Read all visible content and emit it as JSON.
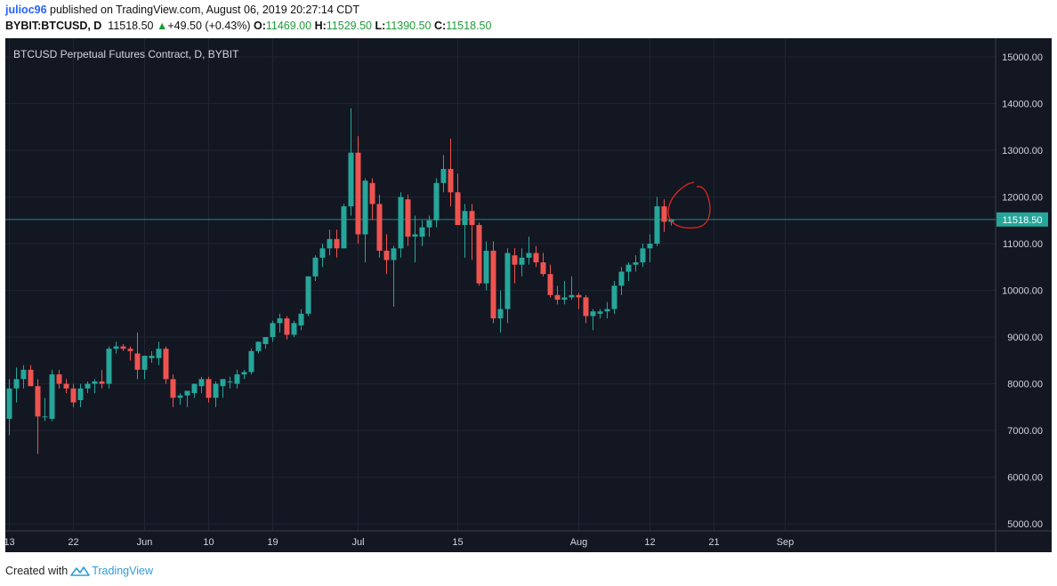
{
  "header": {
    "username": "julioc96",
    "published_text": "published on TradingView.com, August 06, 2019 20:27:14 CDT",
    "symbol": "BYBIT:BTCUSD, D",
    "last": "11518.50",
    "change": "+49.50 (+0.43%)",
    "o_label": "O:",
    "o_value": "11469.00",
    "h_label": "H:",
    "h_value": "11529.50",
    "l_label": "L:",
    "l_value": "11390.50",
    "c_label": "C:",
    "c_value": "11518.50"
  },
  "footer": {
    "created_with": "Created with",
    "brand": "TradingView"
  },
  "colors": {
    "background": "#131722",
    "up": "#26a69a",
    "down": "#ef5350",
    "grid": "#1f2433",
    "price_line": "#26a69a",
    "annotation": "#e0281f"
  },
  "chart_data": {
    "type": "candlestick",
    "title": "BTCUSD Perpetual Futures Contract, D, BYBIT",
    "ylim": [
      4850,
      15400
    ],
    "yticks": [
      "15000.00",
      "14000.00",
      "13000.00",
      "12000.00",
      "11000.00",
      "10000.00",
      "9000.00",
      "8000.00",
      "7000.00",
      "6000.00",
      "5000.00"
    ],
    "ytick_values": [
      15000,
      14000,
      13000,
      12000,
      11000,
      10000,
      9000,
      8000,
      7000,
      6000,
      5000
    ],
    "xticks": [
      "13",
      "22",
      "Jun",
      "10",
      "19",
      "Jul",
      "15",
      "Aug",
      "12",
      "21",
      "Sep"
    ],
    "xtick_index": [
      0,
      9,
      19,
      28,
      37,
      49,
      63,
      80,
      90,
      99,
      109
    ],
    "current_price_label": "11518.50",
    "current_price": 11518.5,
    "candles": [
      {
        "o": 7250,
        "h": 8100,
        "l": 6900,
        "c": 7900
      },
      {
        "o": 7900,
        "h": 8350,
        "l": 7600,
        "c": 8100
      },
      {
        "o": 8100,
        "h": 8400,
        "l": 7900,
        "c": 8300
      },
      {
        "o": 8300,
        "h": 8400,
        "l": 7950,
        "c": 7950
      },
      {
        "o": 7950,
        "h": 8100,
        "l": 6500,
        "c": 7300
      },
      {
        "o": 7300,
        "h": 7700,
        "l": 7200,
        "c": 7300
      },
      {
        "o": 7250,
        "h": 8300,
        "l": 7200,
        "c": 8200
      },
      {
        "o": 8200,
        "h": 8300,
        "l": 7900,
        "c": 8000
      },
      {
        "o": 8000,
        "h": 8100,
        "l": 7800,
        "c": 7900
      },
      {
        "o": 7900,
        "h": 8000,
        "l": 7500,
        "c": 7600
      },
      {
        "o": 7650,
        "h": 8000,
        "l": 7500,
        "c": 7900
      },
      {
        "o": 7900,
        "h": 8050,
        "l": 7800,
        "c": 8000
      },
      {
        "o": 8000,
        "h": 8100,
        "l": 7800,
        "c": 8050
      },
      {
        "o": 8050,
        "h": 8300,
        "l": 7900,
        "c": 8000
      },
      {
        "o": 8000,
        "h": 8800,
        "l": 7900,
        "c": 8750
      },
      {
        "o": 8750,
        "h": 8900,
        "l": 8650,
        "c": 8800
      },
      {
        "o": 8800,
        "h": 8850,
        "l": 8700,
        "c": 8750
      },
      {
        "o": 8750,
        "h": 8800,
        "l": 8500,
        "c": 8700
      },
      {
        "o": 8650,
        "h": 9100,
        "l": 8100,
        "c": 8300
      },
      {
        "o": 8300,
        "h": 8600,
        "l": 8100,
        "c": 8600
      },
      {
        "o": 8550,
        "h": 8700,
        "l": 8450,
        "c": 8600
      },
      {
        "o": 8550,
        "h": 8900,
        "l": 8400,
        "c": 8750
      },
      {
        "o": 8750,
        "h": 8800,
        "l": 8000,
        "c": 8100
      },
      {
        "o": 8100,
        "h": 8200,
        "l": 7500,
        "c": 7700
      },
      {
        "o": 7700,
        "h": 7800,
        "l": 7550,
        "c": 7750
      },
      {
        "o": 7750,
        "h": 7850,
        "l": 7500,
        "c": 7850
      },
      {
        "o": 7800,
        "h": 8000,
        "l": 7700,
        "c": 8000
      },
      {
        "o": 7950,
        "h": 8150,
        "l": 7800,
        "c": 8100
      },
      {
        "o": 8100,
        "h": 8150,
        "l": 7600,
        "c": 7700
      },
      {
        "o": 7700,
        "h": 8050,
        "l": 7500,
        "c": 8000
      },
      {
        "o": 7950,
        "h": 8100,
        "l": 7700,
        "c": 8100
      },
      {
        "o": 8050,
        "h": 8150,
        "l": 7900,
        "c": 8050
      },
      {
        "o": 8000,
        "h": 8300,
        "l": 7900,
        "c": 8200
      },
      {
        "o": 8200,
        "h": 8300,
        "l": 8100,
        "c": 8250
      },
      {
        "o": 8250,
        "h": 8750,
        "l": 8200,
        "c": 8700
      },
      {
        "o": 8700,
        "h": 8900,
        "l": 8650,
        "c": 8900
      },
      {
        "o": 8850,
        "h": 9000,
        "l": 8750,
        "c": 9000
      },
      {
        "o": 9000,
        "h": 9350,
        "l": 8900,
        "c": 9300
      },
      {
        "o": 9300,
        "h": 9500,
        "l": 9100,
        "c": 9400
      },
      {
        "o": 9400,
        "h": 9450,
        "l": 8950,
        "c": 9050
      },
      {
        "o": 9050,
        "h": 9350,
        "l": 9000,
        "c": 9300
      },
      {
        "o": 9250,
        "h": 9600,
        "l": 9150,
        "c": 9500
      },
      {
        "o": 9500,
        "h": 10300,
        "l": 9450,
        "c": 10300
      },
      {
        "o": 10300,
        "h": 10750,
        "l": 10200,
        "c": 10700
      },
      {
        "o": 10700,
        "h": 11000,
        "l": 10500,
        "c": 10900
      },
      {
        "o": 10900,
        "h": 11300,
        "l": 10750,
        "c": 11100
      },
      {
        "o": 11100,
        "h": 11300,
        "l": 10700,
        "c": 10900
      },
      {
        "o": 10900,
        "h": 11850,
        "l": 10900,
        "c": 11800
      },
      {
        "o": 11800,
        "h": 13900,
        "l": 11600,
        "c": 12950
      },
      {
        "o": 12950,
        "h": 13300,
        "l": 11000,
        "c": 11200
      },
      {
        "o": 11200,
        "h": 12400,
        "l": 10600,
        "c": 12350
      },
      {
        "o": 12300,
        "h": 12400,
        "l": 11500,
        "c": 11850
      },
      {
        "o": 11850,
        "h": 12050,
        "l": 10700,
        "c": 10850
      },
      {
        "o": 10850,
        "h": 11200,
        "l": 10350,
        "c": 10650
      },
      {
        "o": 10650,
        "h": 10950,
        "l": 9650,
        "c": 10900
      },
      {
        "o": 10900,
        "h": 12100,
        "l": 10700,
        "c": 12000
      },
      {
        "o": 11950,
        "h": 12050,
        "l": 10950,
        "c": 11150
      },
      {
        "o": 11150,
        "h": 11600,
        "l": 10600,
        "c": 11200
      },
      {
        "o": 11150,
        "h": 11500,
        "l": 10950,
        "c": 11350
      },
      {
        "o": 11350,
        "h": 11600,
        "l": 11150,
        "c": 11500
      },
      {
        "o": 11500,
        "h": 12400,
        "l": 11350,
        "c": 12300
      },
      {
        "o": 12300,
        "h": 12900,
        "l": 12100,
        "c": 12600
      },
      {
        "o": 12600,
        "h": 13250,
        "l": 11800,
        "c": 12100
      },
      {
        "o": 12100,
        "h": 12500,
        "l": 11400,
        "c": 11400
      },
      {
        "o": 11400,
        "h": 11850,
        "l": 10700,
        "c": 11700
      },
      {
        "o": 11700,
        "h": 11850,
        "l": 10650,
        "c": 11400
      },
      {
        "o": 11400,
        "h": 11450,
        "l": 10100,
        "c": 10150
      },
      {
        "o": 10150,
        "h": 11050,
        "l": 10000,
        "c": 10850
      },
      {
        "o": 10850,
        "h": 11050,
        "l": 9300,
        "c": 9400
      },
      {
        "o": 9400,
        "h": 10000,
        "l": 9100,
        "c": 9600
      },
      {
        "o": 9600,
        "h": 10900,
        "l": 9300,
        "c": 10800
      },
      {
        "o": 10750,
        "h": 10900,
        "l": 10150,
        "c": 10550
      },
      {
        "o": 10550,
        "h": 10900,
        "l": 10300,
        "c": 10700
      },
      {
        "o": 10700,
        "h": 11150,
        "l": 10550,
        "c": 10800
      },
      {
        "o": 10800,
        "h": 10950,
        "l": 10500,
        "c": 10600
      },
      {
        "o": 10600,
        "h": 10800,
        "l": 10300,
        "c": 10350
      },
      {
        "o": 10350,
        "h": 10550,
        "l": 9850,
        "c": 9900
      },
      {
        "o": 9900,
        "h": 10100,
        "l": 9700,
        "c": 9800
      },
      {
        "o": 9800,
        "h": 10200,
        "l": 9700,
        "c": 9850
      },
      {
        "o": 9850,
        "h": 10300,
        "l": 9800,
        "c": 9900
      },
      {
        "o": 9900,
        "h": 9950,
        "l": 9600,
        "c": 9850
      },
      {
        "o": 9850,
        "h": 9900,
        "l": 9300,
        "c": 9450
      },
      {
        "o": 9450,
        "h": 9600,
        "l": 9150,
        "c": 9550
      },
      {
        "o": 9500,
        "h": 9600,
        "l": 9400,
        "c": 9550
      },
      {
        "o": 9550,
        "h": 9750,
        "l": 9400,
        "c": 9600
      },
      {
        "o": 9600,
        "h": 10200,
        "l": 9500,
        "c": 10100
      },
      {
        "o": 10100,
        "h": 10500,
        "l": 9900,
        "c": 10400
      },
      {
        "o": 10400,
        "h": 10600,
        "l": 10200,
        "c": 10550
      },
      {
        "o": 10550,
        "h": 10750,
        "l": 10400,
        "c": 10600
      },
      {
        "o": 10600,
        "h": 11000,
        "l": 10500,
        "c": 10900
      },
      {
        "o": 10900,
        "h": 11200,
        "l": 10600,
        "c": 11000
      },
      {
        "o": 11000,
        "h": 12000,
        "l": 10950,
        "c": 11800
      },
      {
        "o": 11800,
        "h": 11950,
        "l": 11250,
        "c": 11470
      },
      {
        "o": 11469,
        "h": 11530,
        "l": 11390,
        "c": 11518.5
      }
    ]
  }
}
